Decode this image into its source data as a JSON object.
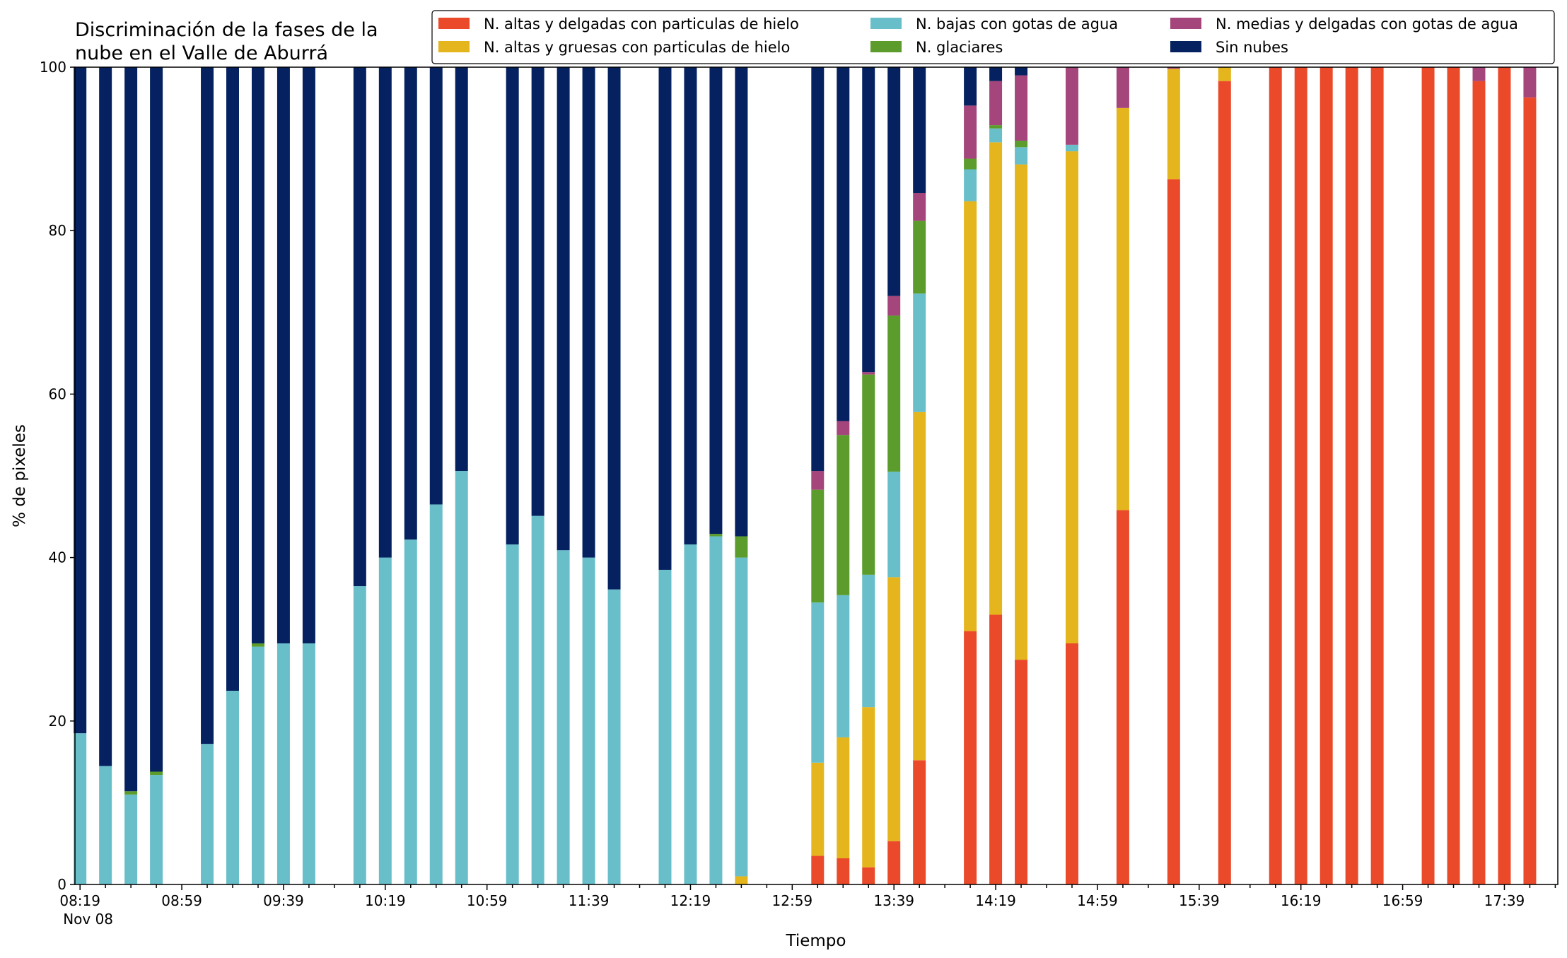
{
  "chart_data": {
    "type": "bar",
    "stacked": true,
    "title": "Discriminación de la fases de la\nnube en el Valle de Aburrá",
    "xlabel": "Tiempo",
    "ylabel": "% de pixeles",
    "ylim": [
      0,
      100
    ],
    "yticks": [
      0,
      20,
      40,
      60,
      80,
      100
    ],
    "x_start": "08:19",
    "x_end": "17:59",
    "x_step_min": 10,
    "x_axis_range": [
      "08:17",
      "18:00"
    ],
    "x_tick_labels": [
      "08:19",
      "08:59",
      "09:39",
      "10:19",
      "10:59",
      "11:39",
      "12:19",
      "12:59",
      "13:39",
      "14:19",
      "14:59",
      "15:39",
      "16:19",
      "16:59",
      "17:39"
    ],
    "x_tick_sublabel": "Nov 08",
    "legend_position": "top-right",
    "grid": false,
    "series": [
      {
        "name": "N. altas y delgadas con particulas de hielo",
        "color": "#ea4a2a",
        "values": [
          0,
          0,
          0,
          0,
          null,
          0,
          0,
          0,
          0,
          0,
          null,
          0,
          0,
          0,
          0,
          0,
          null,
          0,
          0,
          0,
          0,
          0,
          null,
          0,
          0,
          0,
          0,
          null,
          null,
          3.5,
          3.2,
          2.1,
          5.3,
          15.2,
          null,
          31.0,
          33.0,
          27.5,
          null,
          29.5,
          null,
          45.8,
          null,
          86.3,
          null,
          98.3,
          null,
          100,
          100,
          100,
          100,
          100,
          null,
          100,
          100,
          98.3,
          100,
          96.3,
          null
        ]
      },
      {
        "name": "N. altas y gruesas con particulas de hielo",
        "color": "#e5b51d",
        "values": [
          0,
          0,
          0,
          0,
          null,
          0,
          0,
          0,
          0,
          0,
          null,
          0,
          0,
          0,
          0,
          0,
          null,
          0,
          0,
          0,
          0,
          0,
          null,
          0,
          0,
          0,
          1.0,
          null,
          null,
          11.4,
          14.8,
          19.6,
          32.3,
          42.6,
          null,
          52.6,
          57.8,
          60.6,
          null,
          60.2,
          null,
          49.2,
          null,
          13.5,
          null,
          1.7,
          null,
          0,
          0,
          0,
          0,
          0,
          null,
          0,
          0,
          0,
          0,
          0,
          null
        ]
      },
      {
        "name": "N. bajas con gotas de agua",
        "color": "#68bfca",
        "values": [
          18.5,
          14.5,
          11.0,
          13.4,
          null,
          17.2,
          23.7,
          29.1,
          29.5,
          29.5,
          null,
          36.5,
          40.0,
          42.2,
          46.5,
          50.6,
          null,
          41.6,
          45.1,
          40.9,
          40.0,
          36.1,
          null,
          38.5,
          41.6,
          42.6,
          39.0,
          null,
          null,
          19.6,
          17.4,
          16.2,
          12.9,
          14.5,
          null,
          3.9,
          1.7,
          2.1,
          null,
          0.8,
          null,
          0,
          null,
          0,
          null,
          0,
          null,
          0,
          0,
          0,
          0,
          0,
          null,
          0,
          0,
          0,
          0,
          0,
          null
        ]
      },
      {
        "name": "N. glaciares",
        "color": "#5b9c2c",
        "values": [
          0,
          0,
          0.4,
          0.4,
          null,
          0,
          0,
          0.4,
          0,
          0,
          null,
          0,
          0,
          0,
          0,
          0,
          null,
          0,
          0,
          0,
          0,
          0,
          null,
          0,
          0,
          0.3,
          2.6,
          null,
          null,
          13.8,
          19.6,
          24.5,
          19.1,
          8.9,
          null,
          1.3,
          0.4,
          0.8,
          null,
          0,
          null,
          0,
          null,
          0,
          null,
          0,
          null,
          0,
          0,
          0,
          0,
          0,
          null,
          0,
          0,
          0,
          0,
          0,
          null
        ]
      },
      {
        "name": "N. medias y delgadas con gotas de agua",
        "color": "#a4457b",
        "values": [
          0,
          0,
          0,
          0,
          null,
          0,
          0,
          0,
          0,
          0,
          null,
          0,
          0,
          0,
          0,
          0,
          null,
          0,
          0,
          0,
          0,
          0,
          null,
          0,
          0,
          0,
          0,
          null,
          null,
          2.3,
          1.7,
          0.3,
          2.4,
          3.4,
          null,
          6.5,
          5.4,
          8.0,
          null,
          9.5,
          null,
          5.0,
          null,
          0.2,
          null,
          0,
          null,
          0,
          0,
          0,
          0,
          0,
          null,
          0,
          0,
          1.7,
          0,
          3.7,
          null
        ]
      },
      {
        "name": "Sin nubes",
        "color": "#05215f",
        "values": [
          81.5,
          85.5,
          88.6,
          86.2,
          null,
          82.8,
          76.3,
          70.5,
          70.5,
          70.5,
          null,
          63.5,
          60.0,
          57.8,
          53.5,
          49.4,
          null,
          58.4,
          54.9,
          59.1,
          60.0,
          63.9,
          null,
          61.5,
          58.4,
          57.1,
          57.4,
          null,
          null,
          49.4,
          43.3,
          37.3,
          28.0,
          15.4,
          null,
          4.7,
          1.7,
          1.0,
          null,
          0,
          null,
          0,
          null,
          0,
          null,
          0,
          null,
          0,
          0,
          0,
          0,
          0,
          null,
          0,
          0,
          0,
          0,
          0,
          null
        ]
      }
    ]
  }
}
